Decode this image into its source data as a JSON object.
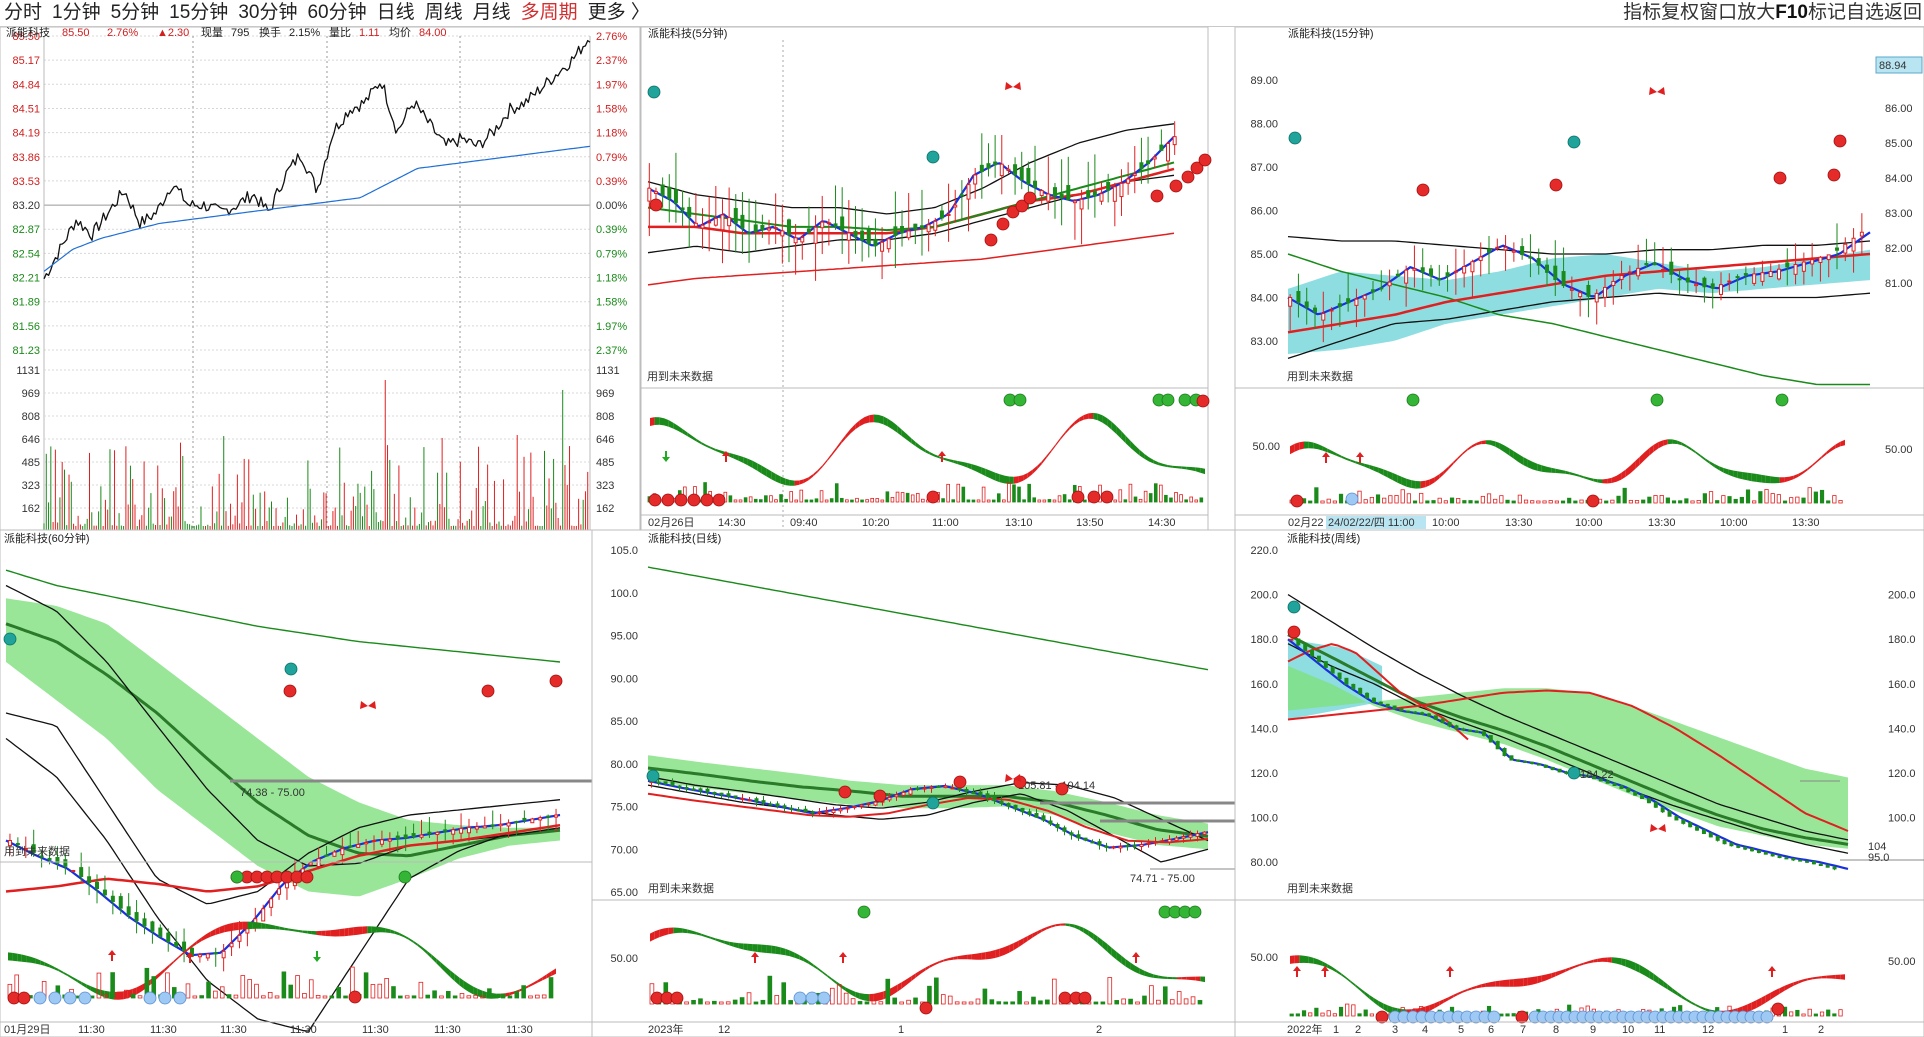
{
  "toolbar": {
    "periods": [
      "分时",
      "1分钟",
      "5分钟",
      "15分钟",
      "30分钟",
      "60分钟",
      "日线",
      "周线",
      "月线",
      "多周期",
      "更多 〉"
    ],
    "active_period": "多周期",
    "tools": [
      "指标",
      "复权",
      "窗口",
      "放大",
      "F10",
      "标记",
      "自选",
      "返回"
    ]
  },
  "colors": {
    "up": "#e02020",
    "down": "#1a8a1a",
    "price": "#111111",
    "avg": "#1f6fd6",
    "ma_blue": "#1a2fe0",
    "band": "#7fe07f",
    "band_teal": "#7ad8dc",
    "grid": "#d8d8d8"
  },
  "icons": [
    "butterfly-icon",
    "red-circle-signal-icon",
    "teal-circle-signal-icon",
    "blue-dot-signal-icon",
    "arrow-up-icon",
    "arrow-down-icon"
  ],
  "labels": {
    "future_data": "用到未来数据"
  },
  "panels": [
    {
      "key": "intraday",
      "title": "派能科技",
      "price": "85.50",
      "change_pct": "2.76%",
      "change": "▲2.30",
      "vol_now_label": "现量",
      "vol_now": "795",
      "turnover_label": "换手",
      "turnover": "2.15%",
      "ratio_label": "量比",
      "ratio": "1.11",
      "avg_label": "均价",
      "avg": "84.00",
      "y_left": [
        "85.50",
        "85.17",
        "84.84",
        "84.51",
        "84.19",
        "83.86",
        "83.53",
        "83.20",
        "82.87",
        "82.54",
        "82.21",
        "81.89",
        "81.56",
        "81.23"
      ],
      "y_right": [
        "2.76%",
        "2.37%",
        "1.97%",
        "1.58%",
        "1.18%",
        "0.79%",
        "0.39%",
        "0.00%",
        "0.39%",
        "0.79%",
        "1.18%",
        "1.58%",
        "1.97%",
        "2.37%"
      ],
      "vol_ticks": [
        "1131",
        "969",
        "808",
        "646",
        "485",
        "323",
        "162"
      ]
    },
    {
      "key": "m5",
      "title": "派能科技(5分钟)",
      "x_ticks": [
        "02月26日",
        "14:30",
        "09:40",
        "10:20",
        "11:00",
        "13:10",
        "13:50",
        "14:30"
      ]
    },
    {
      "key": "m15",
      "title": "派能科技(15分钟)",
      "current": "88.94",
      "y_ticks": [
        "89.00",
        "88.00",
        "87.00",
        "86.00",
        "85.00",
        "84.00",
        "83.00"
      ],
      "right_ticks": [
        "86.00",
        "85.00",
        "84.00",
        "83.00",
        "82.00",
        "81.00"
      ],
      "osc_tick": "50.00",
      "x_ticks": [
        "02月22",
        "24/02/22/四 11:00",
        "10:00",
        "13:30",
        "10:00",
        "13:30",
        "10:00",
        "13:30"
      ]
    },
    {
      "key": "m60",
      "title": "派能科技(60分钟)",
      "annotation": "74.38 - 75.00",
      "x_ticks": [
        "01月29日",
        "11:30",
        "11:30",
        "11:30",
        "11:30",
        "11:30",
        "11:30",
        "11:30"
      ]
    },
    {
      "key": "daily",
      "title": "派能科技(日线)",
      "y_ticks": [
        "105.0",
        "100.0",
        "95.00",
        "90.00",
        "85.00",
        "80.00",
        "75.00",
        "70.00",
        "65.00"
      ],
      "osc_tick": "50.00",
      "annotations": [
        "105.81 - 104.14",
        "74.71 - 75.00"
      ],
      "x_ticks": [
        "2023年",
        "12",
        "1",
        "2"
      ]
    },
    {
      "key": "weekly",
      "title": "派能科技(周线)",
      "annotation": "184.22",
      "y_ticks": [
        "220.0",
        "200.0",
        "180.0",
        "160.0",
        "140.0",
        "120.0",
        "100.0",
        "80.00"
      ],
      "right_ticks": [
        "200.0",
        "180.0",
        "160.0",
        "140.0",
        "120.0",
        "100.0"
      ],
      "osc_tick": "50.00",
      "right_osc": "50.00",
      "edge": [
        "104",
        "95.0"
      ],
      "x_ticks": [
        "2022年",
        "1",
        "2",
        "3",
        "4",
        "5",
        "6",
        "7",
        "8",
        "9",
        "10",
        "11",
        "12",
        "1",
        "2"
      ]
    }
  ],
  "chart_data": [
    {
      "type": "line",
      "title": "派能科技 分时",
      "series": [
        {
          "name": "价格",
          "values": [
            82.2,
            82.6,
            83.0,
            82.8,
            83.1,
            83.4,
            82.95,
            83.1,
            83.5,
            83.2,
            83.2,
            83.1,
            83.2,
            83.35,
            83.1,
            83.6,
            83.9,
            83.4,
            84.2,
            84.5,
            84.6,
            84.9,
            84.2,
            84.6,
            84.3,
            84.0,
            84.1,
            84.0,
            84.2,
            84.5,
            84.6,
            84.8,
            85.0,
            85.2,
            85.5
          ]
        },
        {
          "name": "均价",
          "values": [
            82.3,
            82.6,
            82.75,
            82.85,
            82.95,
            83.0,
            83.05,
            83.1,
            83.15,
            83.2,
            83.25,
            83.3,
            83.5,
            83.7,
            83.75,
            83.8,
            83.85,
            83.9,
            83.95,
            84.0
          ]
        }
      ],
      "ylim": [
        81.23,
        85.5
      ]
    },
    {
      "type": "line",
      "title": "派能科技(5分钟)",
      "series": [
        {
          "name": "价格",
          "values": [
            84.2,
            84.0,
            83.6,
            83.8,
            83.5,
            83.6,
            83.4,
            83.7,
            83.5,
            83.3,
            83.5,
            83.6,
            83.8,
            84.4,
            84.6,
            84.3,
            84.1,
            84.0,
            84.1,
            84.3,
            84.6,
            85.0
          ]
        }
      ]
    },
    {
      "type": "line",
      "title": "派能科技(15分钟)",
      "series": [
        {
          "name": "价格",
          "values": [
            84.0,
            83.6,
            83.9,
            84.2,
            84.7,
            84.4,
            84.8,
            85.2,
            84.9,
            84.3,
            84.0,
            84.5,
            84.8,
            84.4,
            84.2,
            84.5,
            84.6,
            84.8,
            85.0,
            85.5
          ]
        }
      ],
      "ylim": [
        82.5,
        89.5
      ]
    },
    {
      "type": "line",
      "title": "派能科技(60分钟)",
      "series": [
        {
          "name": "价格",
          "values": [
            79.0,
            78.4,
            77.9,
            77.0,
            76.0,
            75.2,
            74.5,
            74.6,
            75.8,
            77.3,
            78.2,
            78.7,
            79.0,
            79.1,
            79.3,
            79.5,
            79.6,
            79.8,
            80.0
          ]
        }
      ]
    },
    {
      "type": "line",
      "title": "派能科技(日线)",
      "series": [
        {
          "name": "价格",
          "values": [
            78.0,
            77.2,
            76.5,
            75.8,
            75.0,
            74.2,
            74.8,
            75.6,
            77.0,
            77.4,
            76.5,
            75.0,
            73.5,
            71.5,
            70.2,
            70.5,
            71.2,
            72.0
          ]
        }
      ],
      "ylim": [
        65,
        105
      ]
    },
    {
      "type": "line",
      "title": "派能科技(周线)",
      "series": [
        {
          "name": "价格",
          "values": [
            180,
            170,
            160,
            152,
            148,
            146,
            140,
            138,
            126,
            124,
            120,
            118,
            114,
            108,
            100,
            94,
            88,
            85,
            82,
            80,
            77
          ]
        }
      ],
      "ylim": [
        75,
        220
      ]
    }
  ]
}
